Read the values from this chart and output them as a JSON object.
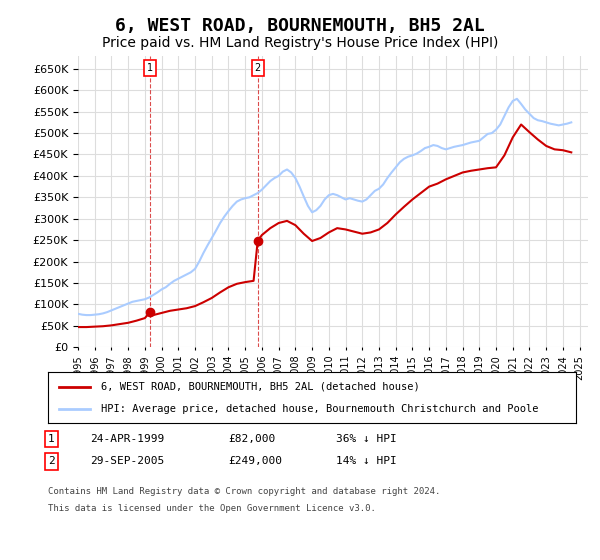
{
  "title": "6, WEST ROAD, BOURNEMOUTH, BH5 2AL",
  "subtitle": "Price paid vs. HM Land Registry's House Price Index (HPI)",
  "title_fontsize": 13,
  "subtitle_fontsize": 10,
  "ylabel_values": [
    0,
    50000,
    100000,
    150000,
    200000,
    250000,
    300000,
    350000,
    400000,
    450000,
    500000,
    550000,
    600000,
    650000
  ],
  "ylim": [
    0,
    680000
  ],
  "xlim_start": 1995.0,
  "xlim_end": 2025.5,
  "grid_color": "#dddddd",
  "plot_bg_color": "#ffffff",
  "fig_bg_color": "#ffffff",
  "hpi_color": "#aaccff",
  "price_color": "#cc0000",
  "marker_color": "#cc0000",
  "purchase1_date_x": 1999.31,
  "purchase1_price": 82000,
  "purchase2_date_x": 2005.75,
  "purchase2_price": 249000,
  "legend_label_price": "6, WEST ROAD, BOURNEMOUTH, BH5 2AL (detached house)",
  "legend_label_hpi": "HPI: Average price, detached house, Bournemouth Christchurch and Poole",
  "footnote1": "1   24-APR-1999          £82,000          36% ↓ HPI",
  "footnote2": "2   29-SEP-2005          £249,000        14% ↓ HPI",
  "footnote3": "Contains HM Land Registry data © Crown copyright and database right 2024.",
  "footnote4": "This data is licensed under the Open Government Licence v3.0.",
  "hpi_data_x": [
    1995.0,
    1995.25,
    1995.5,
    1995.75,
    1996.0,
    1996.25,
    1996.5,
    1996.75,
    1997.0,
    1997.25,
    1997.5,
    1997.75,
    1998.0,
    1998.25,
    1998.5,
    1998.75,
    1999.0,
    1999.25,
    1999.5,
    1999.75,
    2000.0,
    2000.25,
    2000.5,
    2000.75,
    2001.0,
    2001.25,
    2001.5,
    2001.75,
    2002.0,
    2002.25,
    2002.5,
    2002.75,
    2003.0,
    2003.25,
    2003.5,
    2003.75,
    2004.0,
    2004.25,
    2004.5,
    2004.75,
    2005.0,
    2005.25,
    2005.5,
    2005.75,
    2006.0,
    2006.25,
    2006.5,
    2006.75,
    2007.0,
    2007.25,
    2007.5,
    2007.75,
    2008.0,
    2008.25,
    2008.5,
    2008.75,
    2009.0,
    2009.25,
    2009.5,
    2009.75,
    2010.0,
    2010.25,
    2010.5,
    2010.75,
    2011.0,
    2011.25,
    2011.5,
    2011.75,
    2012.0,
    2012.25,
    2012.5,
    2012.75,
    2013.0,
    2013.25,
    2013.5,
    2013.75,
    2014.0,
    2014.25,
    2014.5,
    2014.75,
    2015.0,
    2015.25,
    2015.5,
    2015.75,
    2016.0,
    2016.25,
    2016.5,
    2016.75,
    2017.0,
    2017.25,
    2017.5,
    2017.75,
    2018.0,
    2018.25,
    2018.5,
    2018.75,
    2019.0,
    2019.25,
    2019.5,
    2019.75,
    2020.0,
    2020.25,
    2020.5,
    2020.75,
    2021.0,
    2021.25,
    2021.5,
    2021.75,
    2022.0,
    2022.25,
    2022.5,
    2022.75,
    2023.0,
    2023.25,
    2023.5,
    2023.75,
    2024.0,
    2024.25,
    2024.5
  ],
  "hpi_data_y": [
    78000,
    76000,
    75000,
    75000,
    76000,
    77000,
    79000,
    82000,
    86000,
    90000,
    94000,
    98000,
    102000,
    106000,
    108000,
    110000,
    112000,
    116000,
    122000,
    128000,
    135000,
    140000,
    148000,
    155000,
    160000,
    165000,
    170000,
    175000,
    183000,
    200000,
    220000,
    238000,
    255000,
    272000,
    290000,
    305000,
    318000,
    330000,
    340000,
    345000,
    348000,
    350000,
    355000,
    360000,
    368000,
    378000,
    388000,
    395000,
    400000,
    410000,
    415000,
    408000,
    395000,
    375000,
    352000,
    330000,
    315000,
    320000,
    330000,
    345000,
    355000,
    358000,
    355000,
    350000,
    345000,
    348000,
    345000,
    342000,
    340000,
    345000,
    355000,
    365000,
    370000,
    380000,
    395000,
    408000,
    420000,
    432000,
    440000,
    445000,
    448000,
    452000,
    458000,
    465000,
    468000,
    472000,
    470000,
    465000,
    462000,
    465000,
    468000,
    470000,
    472000,
    475000,
    478000,
    480000,
    482000,
    490000,
    498000,
    500000,
    508000,
    520000,
    540000,
    560000,
    575000,
    580000,
    568000,
    555000,
    545000,
    535000,
    530000,
    528000,
    525000,
    522000,
    520000,
    518000,
    520000,
    522000,
    525000
  ],
  "price_data_x": [
    1995.0,
    1995.5,
    1996.0,
    1996.5,
    1997.0,
    1997.5,
    1998.0,
    1998.5,
    1999.0,
    1999.31,
    1999.5,
    2000.0,
    2000.5,
    2001.0,
    2001.5,
    2002.0,
    2002.5,
    2003.0,
    2003.5,
    2004.0,
    2004.5,
    2005.0,
    2005.5,
    2005.75,
    2006.0,
    2006.5,
    2007.0,
    2007.5,
    2008.0,
    2008.5,
    2009.0,
    2009.5,
    2010.0,
    2010.5,
    2011.0,
    2011.5,
    2012.0,
    2012.5,
    2013.0,
    2013.5,
    2014.0,
    2014.5,
    2015.0,
    2015.5,
    2016.0,
    2016.5,
    2017.0,
    2017.5,
    2018.0,
    2018.5,
    2019.0,
    2019.5,
    2020.0,
    2020.5,
    2021.0,
    2021.5,
    2022.0,
    2022.5,
    2023.0,
    2023.5,
    2024.0,
    2024.5
  ],
  "price_data_y": [
    47000,
    47000,
    48000,
    49000,
    51000,
    54000,
    57000,
    62000,
    68000,
    82000,
    75000,
    80000,
    85000,
    88000,
    91000,
    96000,
    105000,
    115000,
    128000,
    140000,
    148000,
    152000,
    155000,
    249000,
    262000,
    278000,
    290000,
    295000,
    285000,
    265000,
    248000,
    255000,
    268000,
    278000,
    275000,
    270000,
    265000,
    268000,
    275000,
    290000,
    310000,
    328000,
    345000,
    360000,
    375000,
    382000,
    392000,
    400000,
    408000,
    412000,
    415000,
    418000,
    420000,
    448000,
    490000,
    520000,
    502000,
    485000,
    470000,
    462000,
    460000,
    455000
  ]
}
